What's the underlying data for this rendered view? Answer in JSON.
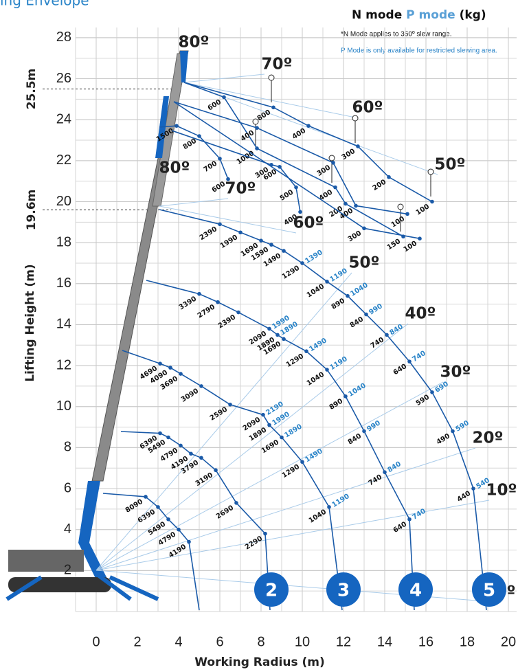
{
  "chart_data": {
    "type": "load-chart",
    "title": "ing Envelope",
    "legend": {
      "n": "N mode",
      "p": "P mode",
      "unit": "(kg)"
    },
    "notes": [
      "*N Mode applies to 360º slew range.",
      "P Mode is only available for restricted slewing area."
    ],
    "xlabel": "Working Radius (m)",
    "ylabel": "Lifting Height (m)",
    "xlim": [
      -1,
      20.4
    ],
    "ylim": [
      0,
      28.5
    ],
    "xticks": [
      0,
      2,
      4,
      6,
      8,
      10,
      12,
      14,
      16,
      18,
      20
    ],
    "yticks": [
      2,
      4,
      6,
      8,
      10,
      12,
      14,
      16,
      18,
      20,
      22,
      24,
      26,
      28
    ],
    "grid": true,
    "height_markers": [
      {
        "value": 25.5,
        "label": "25.5m"
      },
      {
        "value": 19.6,
        "label": "19.6m"
      }
    ],
    "angle_labels": [
      "80º",
      "70º",
      "60º",
      "50º",
      "80º",
      "70º",
      "60º",
      "50º",
      "40º",
      "30º",
      "20º",
      "10º",
      "0º"
    ],
    "sections": [
      2,
      3,
      4,
      5
    ],
    "n_color": "#1a5aa8",
    "p_color": "#2a84c8",
    "main_curves": [
      {
        "points": [
          {
            "x": 2.4,
            "y": 5.6,
            "n": 8090
          },
          {
            "x": 3.0,
            "y": 5.1,
            "n": 6390
          },
          {
            "x": 3.5,
            "y": 4.5,
            "n": 5490
          },
          {
            "x": 4.0,
            "y": 4.0,
            "n": 4790
          },
          {
            "x": 4.5,
            "y": 3.4,
            "n": 4190
          }
        ]
      },
      {
        "points": [
          {
            "x": 3.1,
            "y": 8.7,
            "n": 6390
          },
          {
            "x": 3.5,
            "y": 8.5,
            "n": 5490
          },
          {
            "x": 4.1,
            "y": 8.1,
            "n": 4790
          },
          {
            "x": 4.6,
            "y": 7.7,
            "n": 4190
          },
          {
            "x": 5.1,
            "y": 7.5,
            "n": 3790
          },
          {
            "x": 5.8,
            "y": 6.9,
            "n": 3190
          },
          {
            "x": 6.8,
            "y": 5.3,
            "n": 2690
          },
          {
            "x": 8.2,
            "y": 3.8,
            "n": 2290
          }
        ]
      },
      {
        "points": [
          {
            "x": 3.1,
            "y": 12.1,
            "n": 4690
          },
          {
            "x": 3.6,
            "y": 11.9,
            "n": 4090
          },
          {
            "x": 4.1,
            "y": 11.6,
            "n": 3690
          },
          {
            "x": 5.1,
            "y": 11.0,
            "n": 3090
          },
          {
            "x": 6.5,
            "y": 10.1,
            "n": 2590
          },
          {
            "x": 8.1,
            "y": 9.6,
            "n": 2090,
            "p": 2190
          },
          {
            "x": 8.4,
            "y": 9.1,
            "n": 1890,
            "p": 1990
          },
          {
            "x": 9.0,
            "y": 8.5,
            "n": 1690,
            "p": 1890
          },
          {
            "x": 10.0,
            "y": 7.3,
            "n": 1290,
            "p": 1490
          },
          {
            "x": 11.3,
            "y": 5.1,
            "n": 1040,
            "p": 1190
          }
        ]
      },
      {
        "points": [
          {
            "x": 5.0,
            "y": 15.5,
            "n": 3390
          },
          {
            "x": 5.9,
            "y": 15.1,
            "n": 2790
          },
          {
            "x": 6.9,
            "y": 14.6,
            "n": 2390
          },
          {
            "x": 8.4,
            "y": 13.8,
            "n": 2090,
            "p": 1990
          },
          {
            "x": 8.8,
            "y": 13.5,
            "n": 1890,
            "p": 1890
          },
          {
            "x": 9.1,
            "y": 13.3,
            "n": 1690
          },
          {
            "x": 10.2,
            "y": 12.7,
            "n": 1290,
            "p": 1490
          },
          {
            "x": 11.2,
            "y": 11.8,
            "n": 1040,
            "p": 1190
          },
          {
            "x": 12.1,
            "y": 10.5,
            "n": 890,
            "p": 1040
          },
          {
            "x": 13.0,
            "y": 8.8,
            "n": 840,
            "p": 990
          },
          {
            "x": 14.0,
            "y": 6.8,
            "n": 740,
            "p": 840
          },
          {
            "x": 15.2,
            "y": 4.5,
            "n": 640,
            "p": 740
          }
        ]
      },
      {
        "points": [
          {
            "x": 6.0,
            "y": 18.9,
            "n": 2390
          },
          {
            "x": 7.0,
            "y": 18.5,
            "n": 1990
          },
          {
            "x": 8.0,
            "y": 18.1,
            "n": 1690
          },
          {
            "x": 8.5,
            "y": 17.9,
            "n": 1590
          },
          {
            "x": 9.1,
            "y": 17.6,
            "n": 1490
          },
          {
            "x": 10.0,
            "y": 17.0,
            "n": 1290,
            "p": 1390
          },
          {
            "x": 11.2,
            "y": 16.1,
            "n": 1040,
            "p": 1190
          },
          {
            "x": 12.2,
            "y": 15.4,
            "n": 890,
            "p": 1040
          },
          {
            "x": 13.1,
            "y": 14.5,
            "n": 840,
            "p": 990
          },
          {
            "x": 14.1,
            "y": 13.5,
            "n": 740,
            "p": 840
          },
          {
            "x": 15.2,
            "y": 12.2,
            "n": 640,
            "p": 740
          },
          {
            "x": 16.3,
            "y": 10.7,
            "n": 590,
            "p": 690
          },
          {
            "x": 17.3,
            "y": 8.8,
            "n": 490,
            "p": 590
          },
          {
            "x": 18.3,
            "y": 6.0,
            "n": 440,
            "p": 540
          }
        ]
      }
    ],
    "jib_curves": [
      {
        "points": [
          {
            "x": 8.6,
            "y": 24.6,
            "n": 800
          },
          {
            "x": 10.3,
            "y": 23.7,
            "n": 400
          },
          {
            "x": 12.7,
            "y": 22.7,
            "n": 300
          },
          {
            "x": 14.2,
            "y": 21.2,
            "n": 200
          },
          {
            "x": 16.3,
            "y": 20.0,
            "n": 100
          }
        ]
      },
      {
        "points": [
          {
            "x": 6.2,
            "y": 25.1,
            "n": 600
          },
          {
            "x": 7.8,
            "y": 22.6,
            "n": 1000
          },
          {
            "x": 11.6,
            "y": 20.7,
            "n": 400
          },
          {
            "x": 12.1,
            "y": 19.9,
            "n": 200
          },
          {
            "x": 14.9,
            "y": 18.3,
            "n": 150
          }
        ]
      },
      {
        "points": [
          {
            "x": 7.8,
            "y": 23.6,
            "n": 400
          },
          {
            "x": 11.5,
            "y": 21.9,
            "n": 300
          },
          {
            "x": 12.6,
            "y": 19.8,
            "n": 400
          },
          {
            "x": 15.1,
            "y": 19.4,
            "n": 100
          }
        ]
      },
      {
        "points": [
          {
            "x": 3.9,
            "y": 23.7,
            "n": 1500
          },
          {
            "x": 5.0,
            "y": 23.2,
            "n": 800
          },
          {
            "x": 6.0,
            "y": 22.1,
            "n": 700
          },
          {
            "x": 6.4,
            "y": 21.1,
            "n": 600
          }
        ]
      },
      {
        "points": [
          {
            "x": 8.5,
            "y": 21.8,
            "n": 300
          },
          {
            "x": 8.9,
            "y": 21.7,
            "n": 600
          },
          {
            "x": 9.7,
            "y": 20.7,
            "n": 500
          },
          {
            "x": 9.9,
            "y": 19.5,
            "n": 400
          }
        ]
      },
      {
        "points": [
          {
            "x": 13.0,
            "y": 18.7,
            "n": 300
          },
          {
            "x": 15.7,
            "y": 18.2,
            "n": 100
          }
        ]
      }
    ]
  }
}
